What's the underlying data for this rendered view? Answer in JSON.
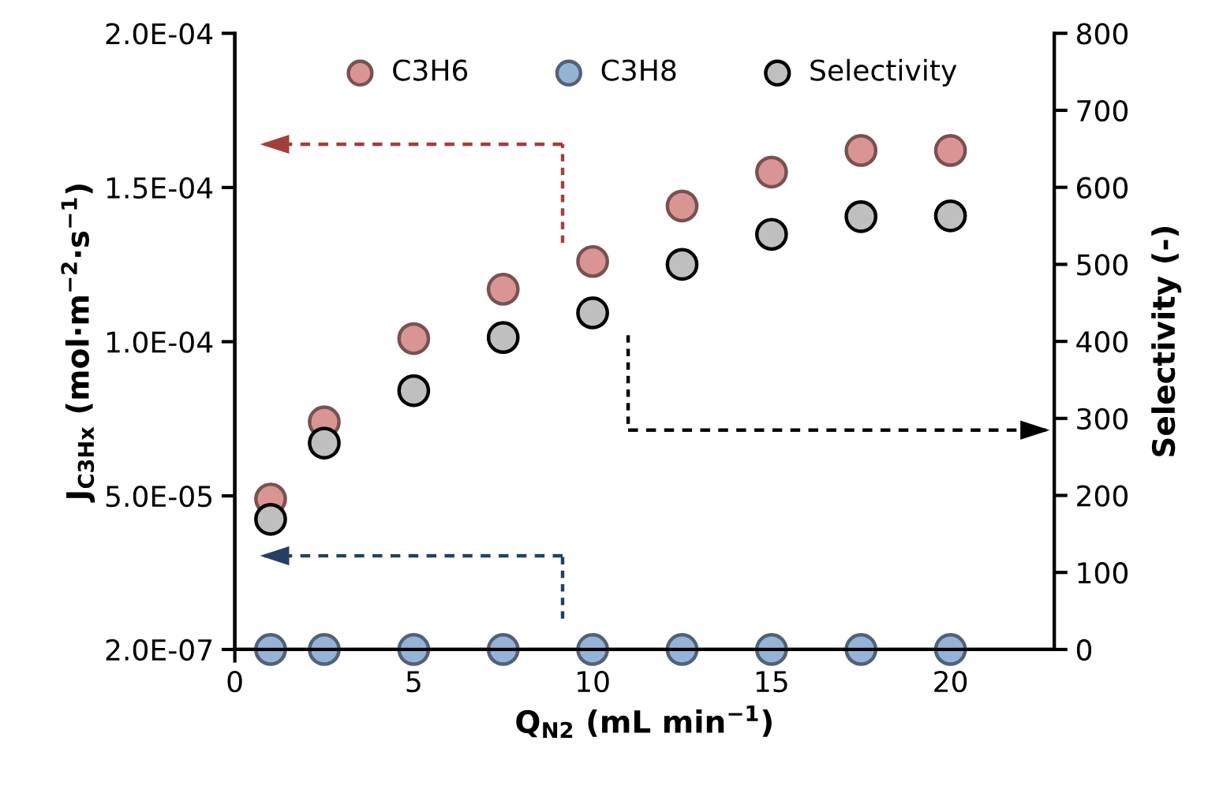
{
  "chart_data": {
    "type": "scatter",
    "xlabel": "Q$_{N2}$ (mL min$^{−1}$)",
    "ylabel": "J$_{C3Hx}$ (mol·m$^{−2}$·s$^{−1}$)",
    "y2label": "Selectivity (-)",
    "x": [
      1,
      2.5,
      5,
      7.5,
      10,
      12.5,
      15,
      17.5,
      20
    ],
    "series": [
      {
        "name": "C3H6",
        "color": "#d99594",
        "values": [
          4.9e-05,
          7.4e-05,
          0.000101,
          0.000117,
          0.000126,
          0.000144,
          0.000155,
          0.000162,
          0.000162
        ]
      },
      {
        "name": "C3H8",
        "color": "#95b3d7",
        "values": [
          2e-07,
          2e-07,
          2e-07,
          2e-07,
          2e-07,
          2e-07,
          2e-07,
          2e-07,
          2e-07
        ]
      },
      {
        "name": "Selectivity",
        "color": "#bfbfbf",
        "axis": "y2",
        "values": [
          169,
          268,
          336,
          405,
          437,
          500,
          539,
          562,
          563
        ]
      }
    ],
    "xlim": [
      0,
      22.9
    ],
    "xticks": [
      0,
      5,
      10,
      15,
      20
    ],
    "ylim": [
      2e-07,
      0.0002
    ],
    "yticks": [
      {
        "value": 2e-07,
        "label": "2.0E-07"
      },
      {
        "value": 5e-05,
        "label": "5.0E-05"
      },
      {
        "value": 0.0001,
        "label": "1.0E-04"
      },
      {
        "value": 0.00015,
        "label": "1.5E-04"
      },
      {
        "value": 0.0002,
        "label": "2.0E-04"
      }
    ],
    "y2lim": [
      0,
      800
    ],
    "y2ticks": [
      0,
      100,
      200,
      300,
      400,
      500,
      600,
      700,
      800
    ],
    "marker": "circle",
    "legend": "top",
    "grid": false
  }
}
